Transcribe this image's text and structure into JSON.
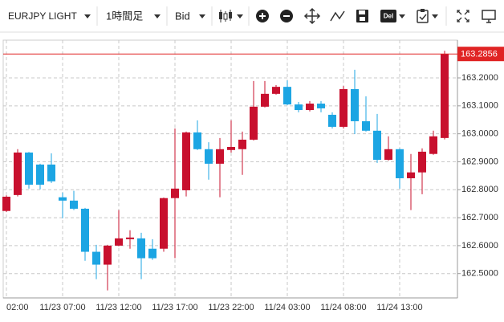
{
  "toolbar": {
    "symbol": "EURJPY LIGHT",
    "timeframe": "1時間足",
    "price_type": "Bid",
    "delete_label": "Del"
  },
  "chart_data": {
    "type": "candlestick",
    "categories": [
      "02:00",
      null,
      null,
      null,
      null,
      "11/23 07:00",
      null,
      null,
      null,
      null,
      "11/23 12:00",
      null,
      null,
      null,
      null,
      "11/23 17:00",
      null,
      null,
      null,
      null,
      "11/23 22:00",
      null,
      null,
      null,
      null,
      "11/24 03:00",
      null,
      null,
      null,
      null,
      "11/24 08:00",
      null,
      null,
      null,
      null,
      "11/24 13:00",
      null,
      null,
      null,
      null
    ],
    "open": [
      162.724,
      162.781,
      162.933,
      162.89,
      162.89,
      162.773,
      162.761,
      162.732,
      162.578,
      162.532,
      162.6,
      162.623,
      162.626,
      162.589,
      162.589,
      162.77,
      162.798,
      163.005,
      162.945,
      162.893,
      162.942,
      162.945,
      162.979,
      163.097,
      163.143,
      163.168,
      163.105,
      163.085,
      163.108,
      163.068,
      163.025,
      163.16,
      163.045,
      163.011,
      162.907,
      162.945,
      162.841,
      162.862,
      162.928,
      162.985
    ],
    "high": [
      162.78,
      162.945,
      162.935,
      162.893,
      162.93,
      162.79,
      162.796,
      162.735,
      162.603,
      162.603,
      162.727,
      162.655,
      162.646,
      162.623,
      162.772,
      163.019,
      163.008,
      163.048,
      162.97,
      162.985,
      163.048,
      163.008,
      163.189,
      163.189,
      163.174,
      163.191,
      163.114,
      163.117,
      163.117,
      163.077,
      163.171,
      163.229,
      163.134,
      163.071,
      162.991,
      162.948,
      162.928,
      162.948,
      163.011,
      163.297
    ],
    "low": [
      162.72,
      162.776,
      162.804,
      162.801,
      162.824,
      162.698,
      162.727,
      162.546,
      162.48,
      162.44,
      162.598,
      162.589,
      162.48,
      162.549,
      162.578,
      162.555,
      162.776,
      162.942,
      162.836,
      162.773,
      162.933,
      162.853,
      162.976,
      163.094,
      163.14,
      163.102,
      163.077,
      163.08,
      163.077,
      163.019,
      163.019,
      162.999,
      163.008,
      162.896,
      162.904,
      162.804,
      162.727,
      162.784,
      162.925,
      162.98
    ],
    "close": [
      162.775,
      162.933,
      162.818,
      162.818,
      162.83,
      162.761,
      162.732,
      162.578,
      162.532,
      162.6,
      162.626,
      162.629,
      162.555,
      162.555,
      162.77,
      162.804,
      163.005,
      162.945,
      162.893,
      162.945,
      162.953,
      162.979,
      163.097,
      163.143,
      163.168,
      163.105,
      163.085,
      163.108,
      163.091,
      163.025,
      163.16,
      163.045,
      163.011,
      162.907,
      162.945,
      162.841,
      162.862,
      162.936,
      162.991,
      163.2856
    ],
    "up_color": "#c8102e",
    "down_color": "#1ca5e3",
    "ylim": [
      162.413,
      163.335
    ],
    "yticks": [
      {
        "value": 162.5,
        "label": "162.5000"
      },
      {
        "value": 162.6,
        "label": "162.6000"
      },
      {
        "value": 162.7,
        "label": "162.7000"
      },
      {
        "value": 162.8,
        "label": "162.8000"
      },
      {
        "value": 162.9,
        "label": "162.9000"
      },
      {
        "value": 163.0,
        "label": "163.0000"
      },
      {
        "value": 163.1,
        "label": "163.1000"
      },
      {
        "value": 163.2,
        "label": "163.2000"
      }
    ],
    "last_price": 163.2856,
    "last_price_color": "#e02424",
    "grid": true
  }
}
